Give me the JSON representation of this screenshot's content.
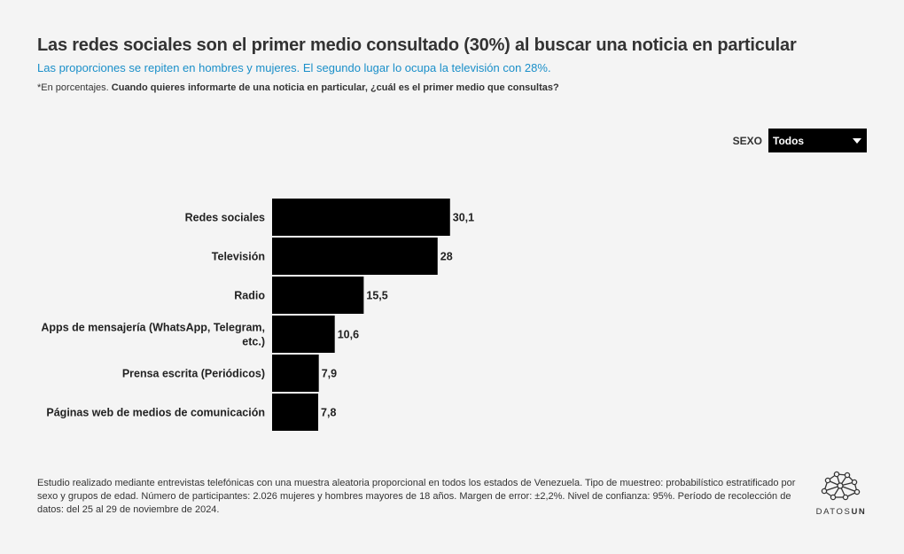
{
  "header": {
    "title": "Las redes sociales son el primer medio consultado (30%) al buscar una noticia en particular",
    "subtitle": "Las proporciones se repiten en hombres y mujeres. El segundo lugar lo ocupa la televisión con 28%.",
    "note": "*En porcentajes.",
    "question": "Cuando quieres informarte de una noticia en particular, ¿cuál es el primer medio que consultas?"
  },
  "filter": {
    "label": "SEXO",
    "selected": "Todos"
  },
  "chart_data": {
    "type": "bar",
    "orientation": "horizontal",
    "categories": [
      "Redes sociales",
      "Televisión",
      "Radio",
      "Apps de mensajería (WhatsApp, Telegram, etc.)",
      "Prensa escrita (Periódicos)",
      "Páginas web de medios de comunicación"
    ],
    "values": [
      30.1,
      28,
      15.5,
      10.6,
      7.9,
      7.8
    ],
    "value_labels": [
      "30,1",
      "28",
      "15,5",
      "10,6",
      "7,9",
      "7,8"
    ],
    "xlim": [
      0,
      100
    ],
    "bar_color": "#000000",
    "grid": false
  },
  "footer": {
    "text": "Estudio realizado mediante entrevistas telefónicas con una muestra aleatoria proporcional en todos los estados de Venezuela. Tipo de muestreo: probabilístico estratificado por sexo y grupos de edad. Número de participantes: 2.026 mujeres y hombres mayores de 18 años. Margen de error: ±2,2%. Nivel de confianza: 95%. Período de recolección de datos: del 25 al 29 de noviembre de 2024."
  },
  "logo": {
    "text_regular": "DATOS",
    "text_bold": "UN",
    "icon": "network-icon"
  }
}
